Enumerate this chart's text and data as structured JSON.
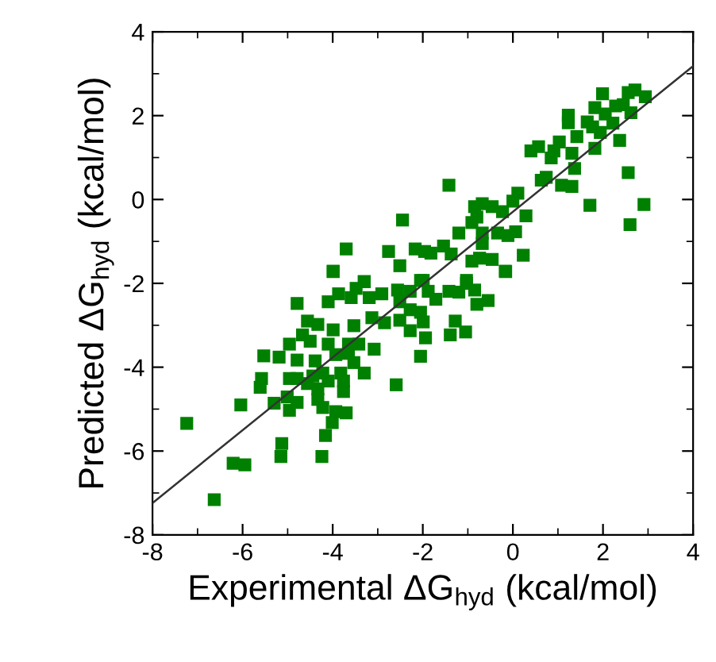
{
  "chart_data": {
    "type": "scatter",
    "xlabel": "Experimental ΔG$_{hyd}$ (kcal/mol)",
    "ylabel": "Predicted ΔG$_{hyd}$ (kcal/mol)",
    "xlim": [
      -8,
      4
    ],
    "ylim": [
      -8,
      4
    ],
    "xticks": [
      -8,
      -6,
      -4,
      -2,
      0,
      2,
      4
    ],
    "yticks": [
      -8,
      -6,
      -4,
      -2,
      0,
      2,
      4
    ],
    "grid": false,
    "series": [
      {
        "color": "#008000",
        "marker": "square",
        "x": [
          1.99,
          2.56,
          2.71,
          2.94,
          1.82,
          2.05,
          2.28,
          2.45,
          2.62,
          1.23,
          1.23,
          1.65,
          1.77,
          1.94,
          2.22,
          2.37,
          1.42,
          1.82,
          1.03,
          0.57,
          0.4,
          0.91,
          0.85,
          1.31,
          1.37,
          2.56,
          0.63,
          0.74,
          1.08,
          1.31,
          1.71,
          2.91,
          2.6,
          -1.42,
          -0.85,
          -0.68,
          -0.46,
          -0.8,
          -0.91,
          -0.23,
          0.0,
          0.11,
          0.29,
          -0.68,
          -0.34,
          -0.11,
          0.06,
          -1.2,
          -0.68,
          0.23,
          -0.17,
          -0.46,
          -0.91,
          -0.74,
          -1.37,
          -1.54,
          -2.45,
          -3.7,
          -2.76,
          -2.17,
          -1.96,
          -1.82,
          -2.51,
          -3.99,
          -3.3,
          -1.03,
          -2.05,
          -3.99,
          -0.16,
          -3.3,
          -3.48,
          -3.87,
          -4.79,
          -4.1,
          -3.59,
          -3.19,
          -2.91,
          -2.56,
          -2.28,
          -1.99,
          -1.88,
          -1.71,
          -1.42,
          -1.2,
          -1.03,
          -0.85,
          -0.8,
          -0.55,
          -2.51,
          -2.28,
          -2.05,
          -4.56,
          -4.33,
          -3.99,
          -3.53,
          -3.13,
          -2.85,
          -2.51,
          -1.99,
          -1.28,
          -1.39,
          -1.05,
          -2.28,
          -1.94,
          -4.67,
          -4.5,
          -4.96,
          -4.1,
          -3.65,
          -3.42,
          -3.08,
          -5.53,
          -5.19,
          -4.79,
          -4.39,
          -3.93,
          -3.65,
          -3.53,
          -2.05,
          -3.3,
          -5.58,
          -5.61,
          -4.96,
          -4.79,
          -4.44,
          -4.22,
          -4.1,
          -3.82,
          -3.76,
          -4.56,
          -4.33,
          -3.76,
          -5.3,
          -5.01,
          -4.79,
          -4.96,
          -4.33,
          -4.22,
          -3.93,
          -3.7,
          -4.01,
          -2.59,
          -6.04,
          -7.24,
          -5.13,
          -5.15,
          -4.16,
          -4.24,
          -6.21,
          -5.95,
          -6.63
        ],
        "values": [
          2.52,
          2.55,
          2.61,
          2.45,
          2.19,
          2.04,
          2.23,
          2.26,
          2.07,
          2.01,
          1.83,
          1.85,
          1.73,
          1.6,
          1.82,
          1.41,
          1.5,
          1.22,
          1.37,
          1.26,
          1.16,
          1.16,
          0.99,
          1.1,
          0.74,
          0.64,
          0.46,
          0.53,
          0.34,
          0.31,
          -0.14,
          -0.12,
          -0.6,
          0.34,
          -0.17,
          -0.1,
          -0.17,
          -0.42,
          -0.55,
          -0.29,
          -0.04,
          0.15,
          -0.39,
          -0.8,
          -0.8,
          -0.86,
          -0.77,
          -0.8,
          -1.05,
          -1.33,
          -1.71,
          -1.43,
          -1.47,
          -1.4,
          -1.3,
          -1.11,
          -0.49,
          -1.18,
          -1.24,
          -1.18,
          -1.24,
          -1.28,
          -1.58,
          -1.71,
          -1.96,
          -1.93,
          -1.93,
          -1.72,
          -1.72,
          -1.96,
          -2.12,
          -2.25,
          -2.48,
          -2.44,
          -2.34,
          -2.34,
          -2.25,
          -2.16,
          -2.19,
          -1.93,
          -2.19,
          -2.38,
          -2.19,
          -2.21,
          -2.0,
          -2.16,
          -2.5,
          -2.41,
          -2.44,
          -2.63,
          -2.69,
          -2.9,
          -2.98,
          -3.11,
          -3.01,
          -2.82,
          -2.94,
          -2.88,
          -2.92,
          -2.9,
          -3.23,
          -3.16,
          -3.13,
          -3.3,
          -3.23,
          -3.38,
          -3.45,
          -3.45,
          -3.45,
          -3.45,
          -3.57,
          -3.73,
          -3.76,
          -3.83,
          -3.85,
          -3.7,
          -3.67,
          -3.89,
          -3.74,
          -4.14,
          -4.27,
          -4.48,
          -4.27,
          -4.27,
          -4.21,
          -4.14,
          -4.33,
          -4.14,
          -4.33,
          -4.39,
          -4.52,
          -4.58,
          -4.86,
          -4.71,
          -4.84,
          -5.03,
          -4.77,
          -4.96,
          -5.06,
          -5.09,
          -5.32,
          -4.42,
          -4.9,
          -5.34,
          -5.82,
          -6.13,
          -5.63,
          -6.13,
          -6.29,
          -6.33,
          -7.16
        ]
      },
      {
        "type": "line",
        "color": "#333333",
        "line_style": "solid",
        "marker": "none",
        "x": [
          -8,
          4
        ],
        "values": [
          -7.24,
          3.18
        ]
      }
    ]
  }
}
